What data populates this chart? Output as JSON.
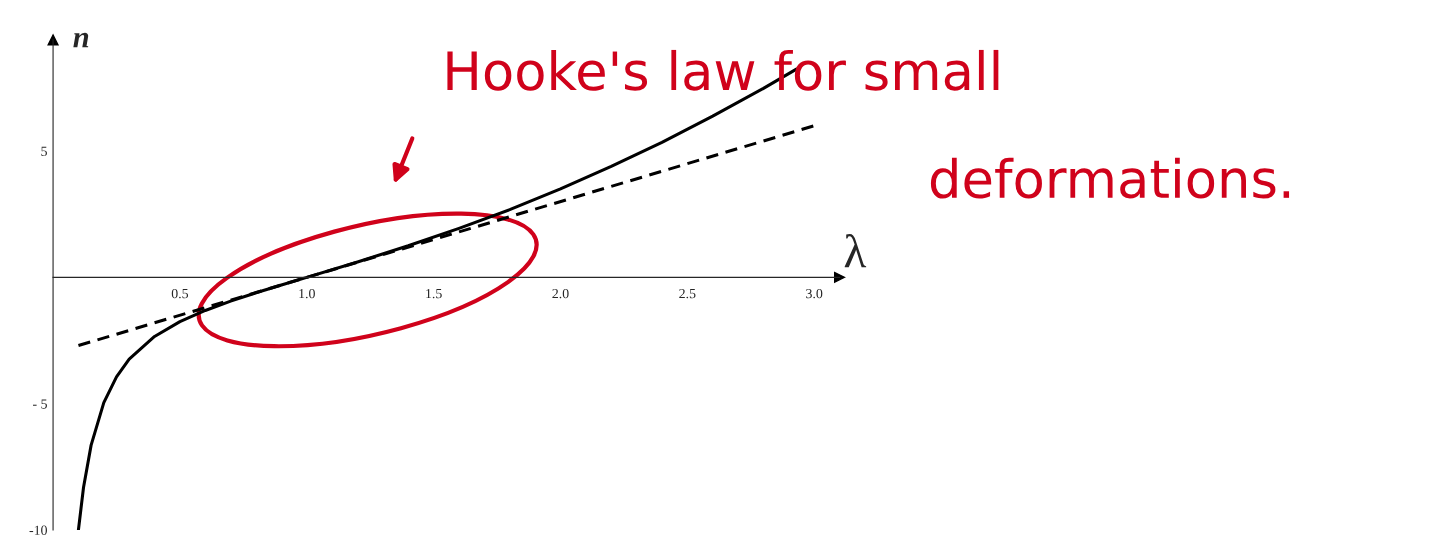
{
  "chart_data": {
    "type": "line",
    "xlabel": "λ",
    "ylabel": "n",
    "series": [
      {
        "color": "#000000",
        "line_style": "solid",
        "x": [
          0.1,
          0.12,
          0.15,
          0.2,
          0.25,
          0.3,
          0.4,
          0.5,
          0.6,
          0.7,
          0.8,
          0.9,
          1.0,
          1.2,
          1.4,
          1.6,
          1.8,
          2.0,
          2.2,
          2.4,
          2.6,
          2.8,
          2.93
        ],
        "values": [
          -9.99,
          -8.32,
          -6.64,
          -4.96,
          -3.94,
          -3.24,
          -2.34,
          -1.75,
          -1.31,
          -0.94,
          -0.61,
          -0.3,
          0,
          0.61,
          1.25,
          1.94,
          2.68,
          3.5,
          4.39,
          5.34,
          6.38,
          7.48,
          8.24
        ]
      },
      {
        "color": "#000000",
        "line_style": "dashed",
        "x": [
          0.1,
          3.0
        ],
        "values": [
          -2.7,
          6.0
        ]
      }
    ],
    "xlim": [
      0,
      3.1
    ],
    "ylim": [
      -10,
      9.4
    ],
    "xticks": [
      0.5,
      {
        "value": 1,
        "label": "1.0"
      },
      1.5,
      {
        "value": 2,
        "label": "2.0"
      },
      2.5,
      {
        "value": 3,
        "label": "3.0"
      }
    ],
    "yticks": [
      {
        "value": -10,
        "label": "-10"
      },
      {
        "value": -5,
        "label": "- 5"
      },
      5
    ],
    "grid": false,
    "legend": false,
    "annotations": [
      "Hooke's law for small",
      "deformations."
    ]
  }
}
